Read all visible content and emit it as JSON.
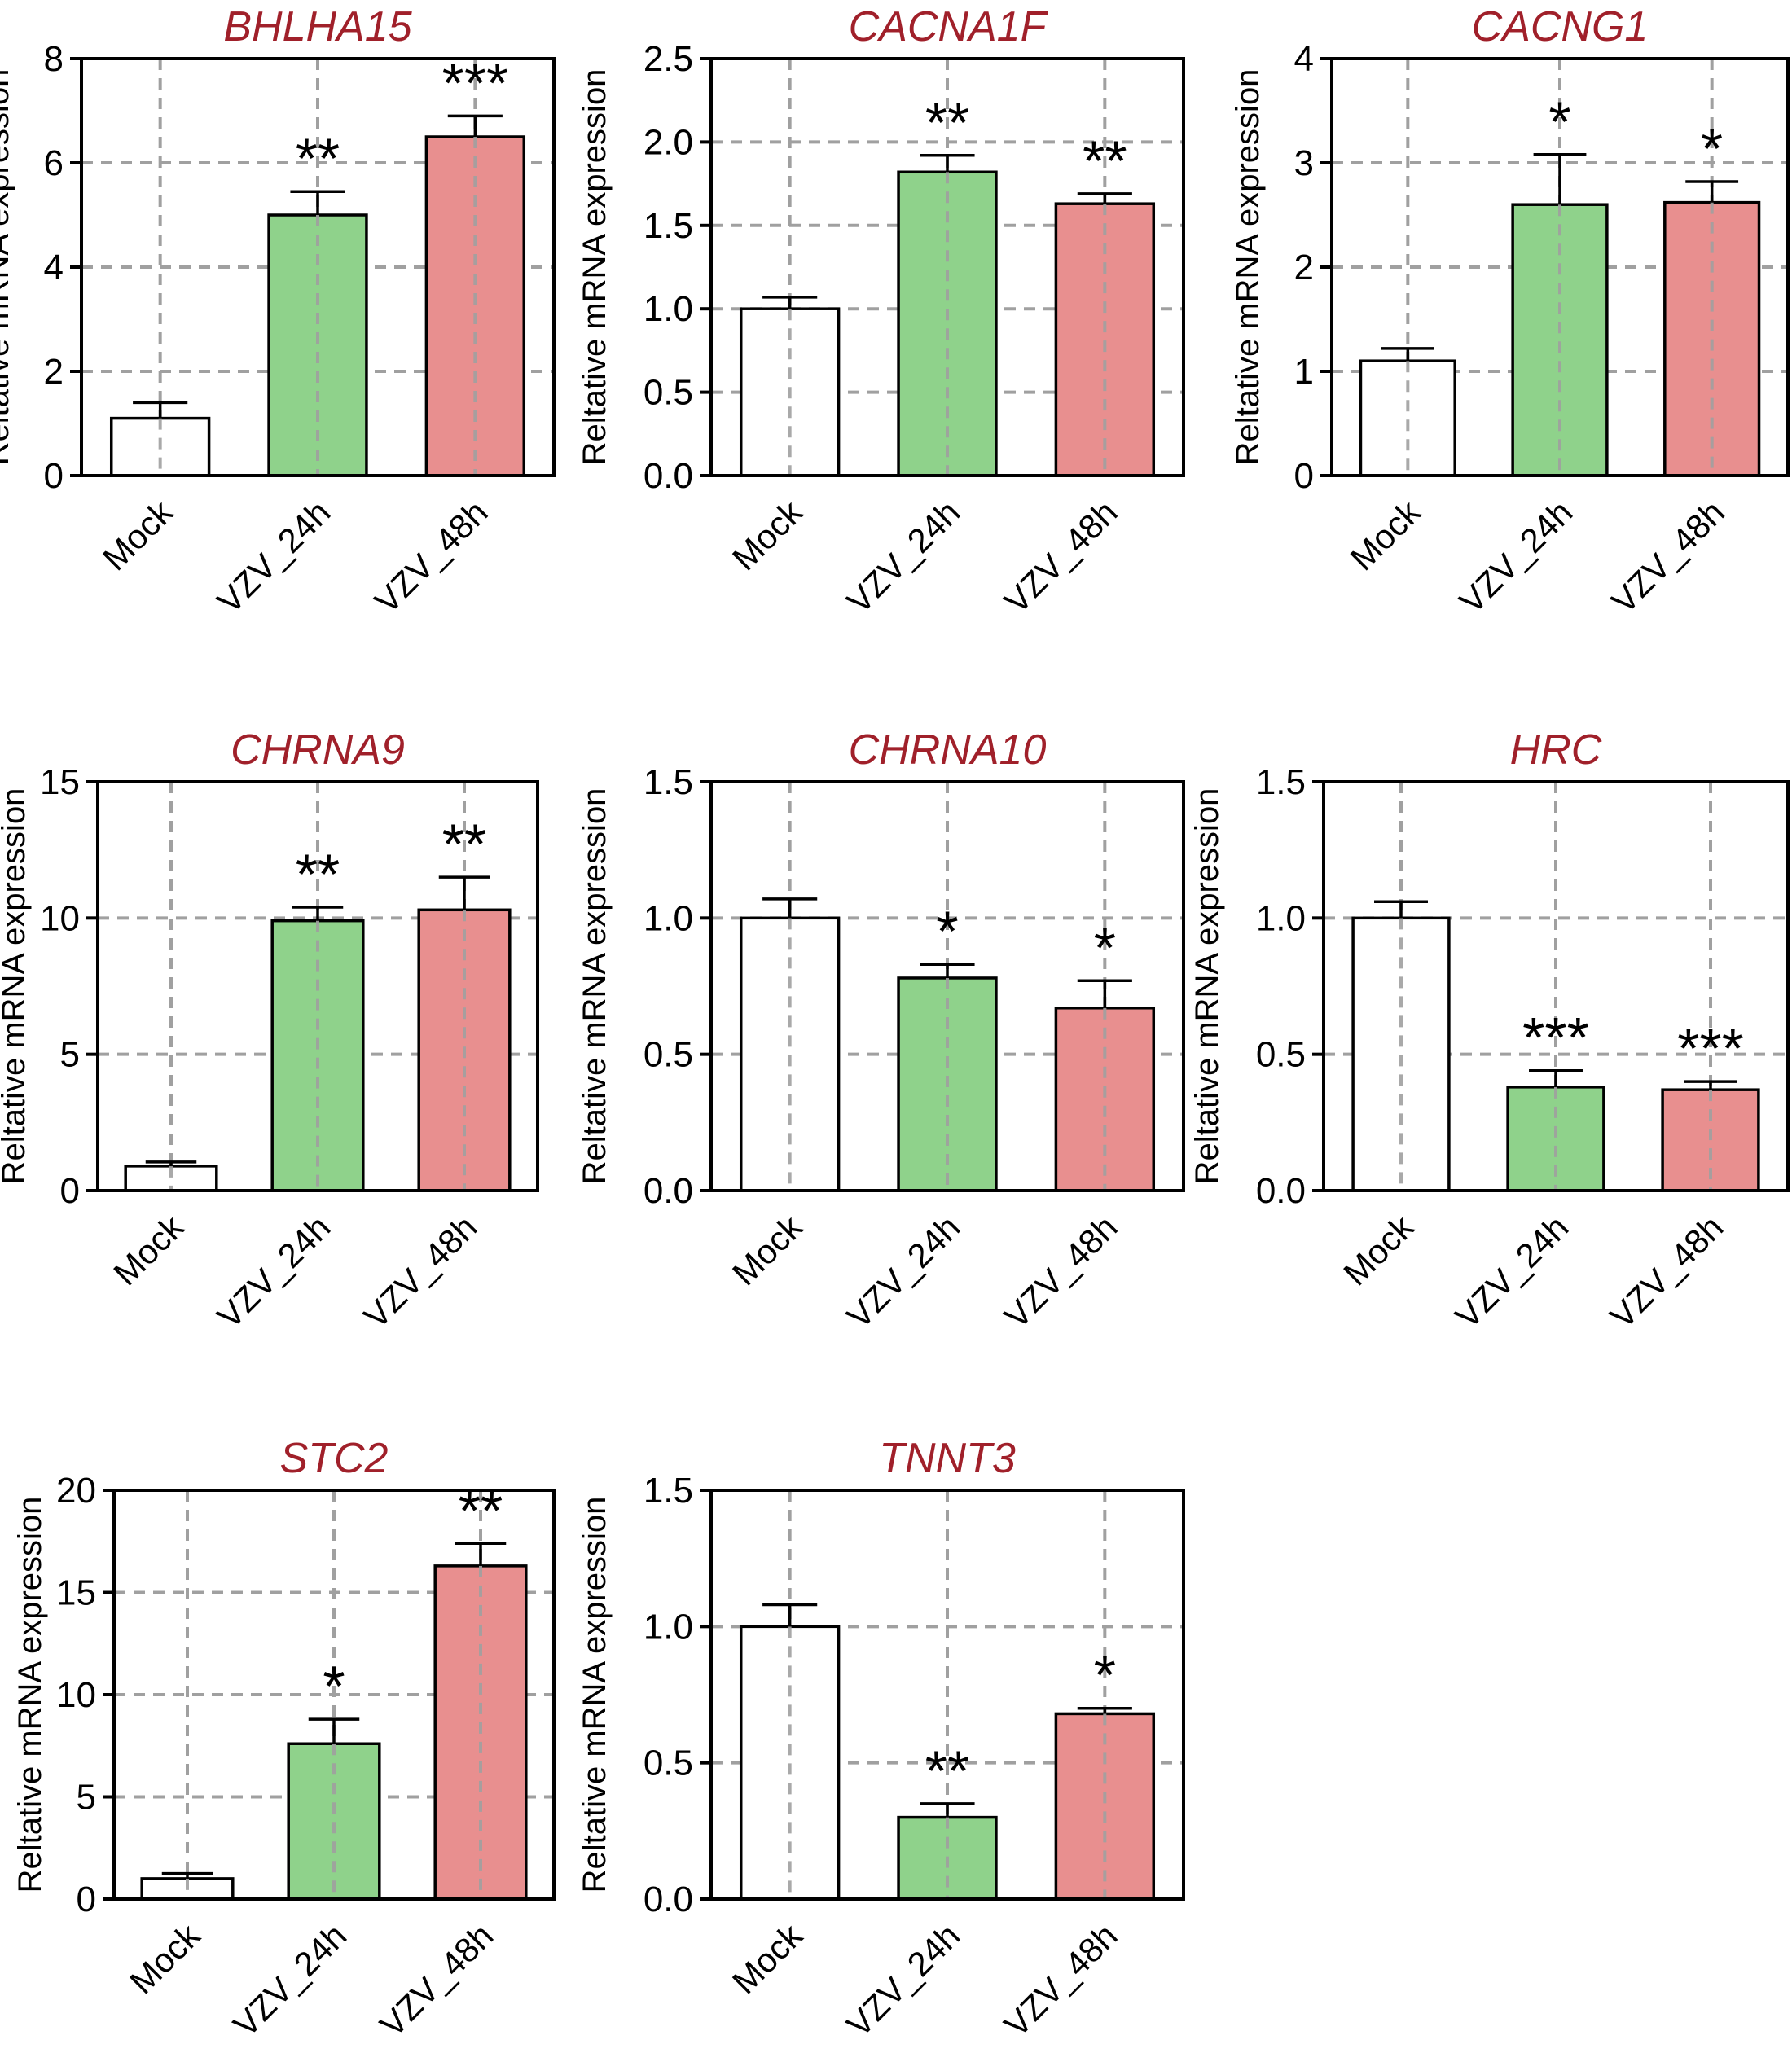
{
  "colors": {
    "title": "#a0202a",
    "grid": "#a0a0a0",
    "mock_fill": "#ffffff",
    "vzv24_fill": "#8fd28b",
    "vzv48_fill": "#e88f8f",
    "bar_stroke": "#000000"
  },
  "chart_data": [
    {
      "type": "bar",
      "title": "BHLHA15",
      "ylabel": "Reltative mRNA expression",
      "categories": [
        "Mock",
        "VZV_24h",
        "VZV_48h"
      ],
      "values": [
        1.1,
        5.0,
        6.5
      ],
      "errors": [
        0.3,
        0.45,
        0.4
      ],
      "significance": [
        "",
        "**",
        "***"
      ],
      "ylim": [
        0,
        8
      ],
      "yticks": [
        "0",
        "2",
        "4",
        "6",
        "8"
      ],
      "ytick_values": [
        0,
        2,
        4,
        6,
        8
      ]
    },
    {
      "type": "bar",
      "title": "CACNA1F",
      "ylabel": "Reltative mRNA expression",
      "categories": [
        "Mock",
        "VZV_24h",
        "VZV_48h"
      ],
      "values": [
        1.0,
        1.82,
        1.63
      ],
      "errors": [
        0.07,
        0.1,
        0.06
      ],
      "significance": [
        "",
        "**",
        "**"
      ],
      "ylim": [
        0,
        2.5
      ],
      "yticks": [
        "0.0",
        "0.5",
        "1.0",
        "1.5",
        "2.0",
        "2.5"
      ],
      "ytick_values": [
        0,
        0.5,
        1.0,
        1.5,
        2.0,
        2.5
      ]
    },
    {
      "type": "bar",
      "title": "CACNG1",
      "ylabel": "Reltative mRNA expression",
      "categories": [
        "Mock",
        "VZV_24h",
        "VZV_48h"
      ],
      "values": [
        1.1,
        2.6,
        2.62
      ],
      "errors": [
        0.12,
        0.48,
        0.2
      ],
      "significance": [
        "",
        "*",
        "*"
      ],
      "ylim": [
        0,
        4
      ],
      "yticks": [
        "0",
        "1",
        "2",
        "3",
        "4"
      ],
      "ytick_values": [
        0,
        1,
        2,
        3,
        4
      ]
    },
    {
      "type": "bar",
      "title": "CHRNA9",
      "ylabel": "Reltative mRNA expression",
      "categories": [
        "Mock",
        "VZV_24h",
        "VZV_48h"
      ],
      "values": [
        0.9,
        9.9,
        10.3
      ],
      "errors": [
        0.15,
        0.5,
        1.2
      ],
      "significance": [
        "",
        "**",
        "**"
      ],
      "ylim": [
        0,
        15
      ],
      "yticks": [
        "0",
        "5",
        "10",
        "15"
      ],
      "ytick_values": [
        0,
        5,
        10,
        15
      ]
    },
    {
      "type": "bar",
      "title": "CHRNA10",
      "ylabel": "Reltative mRNA expression",
      "categories": [
        "Mock",
        "VZV_24h",
        "VZV_48h"
      ],
      "values": [
        1.0,
        0.78,
        0.67
      ],
      "errors": [
        0.07,
        0.05,
        0.1
      ],
      "significance": [
        "",
        "*",
        "*"
      ],
      "ylim": [
        0,
        1.5
      ],
      "yticks": [
        "0.0",
        "0.5",
        "1.0",
        "1.5"
      ],
      "ytick_values": [
        0,
        0.5,
        1.0,
        1.5
      ]
    },
    {
      "type": "bar",
      "title": "HRC",
      "ylabel": "Reltative mRNA expression",
      "categories": [
        "Mock",
        "VZV_24h",
        "VZV_48h"
      ],
      "values": [
        1.0,
        0.38,
        0.37
      ],
      "errors": [
        0.06,
        0.06,
        0.03
      ],
      "significance": [
        "",
        "***",
        "***"
      ],
      "ylim": [
        0,
        1.5
      ],
      "yticks": [
        "0.0",
        "0.5",
        "1.0",
        "1.5"
      ],
      "ytick_values": [
        0,
        0.5,
        1.0,
        1.5
      ]
    },
    {
      "type": "bar",
      "title": "STC2",
      "ylabel": "Reltative mRNA expression",
      "categories": [
        "Mock",
        "VZV_24h",
        "VZV_48h"
      ],
      "values": [
        1.0,
        7.6,
        16.3
      ],
      "errors": [
        0.25,
        1.2,
        1.1
      ],
      "significance": [
        "",
        "*",
        "**"
      ],
      "ylim": [
        0,
        20
      ],
      "yticks": [
        "0",
        "5",
        "10",
        "15",
        "20"
      ],
      "ytick_values": [
        0,
        5,
        10,
        15,
        20
      ]
    },
    {
      "type": "bar",
      "title": "TNNT3",
      "ylabel": "Reltative mRNA expression",
      "categories": [
        "Mock",
        "VZV_24h",
        "VZV_48h"
      ],
      "values": [
        1.0,
        0.3,
        0.68
      ],
      "errors": [
        0.08,
        0.05,
        0.02
      ],
      "significance": [
        "",
        "**",
        "*"
      ],
      "ylim": [
        0,
        1.5
      ],
      "yticks": [
        "0.0",
        "0.5",
        "1.0",
        "1.5"
      ],
      "ytick_values": [
        0,
        0.5,
        1.0,
        1.5
      ]
    }
  ]
}
